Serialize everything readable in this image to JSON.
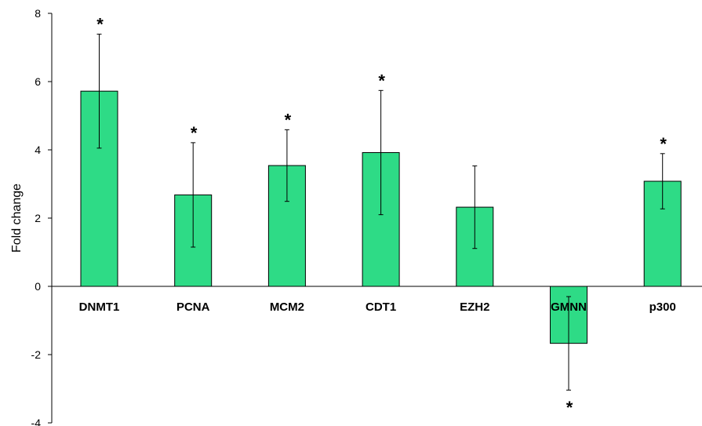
{
  "chart_data": {
    "type": "bar",
    "title": "",
    "xlabel": "",
    "ylabel": "Fold change",
    "ylim": [
      -4,
      8
    ],
    "yticks": [
      -4,
      -2,
      0,
      2,
      4,
      6,
      8
    ],
    "grid": false,
    "legend": "none",
    "bar_color": "#2edb86",
    "categories": [
      "DNMT1",
      "PCNA",
      "MCM2",
      "CDT1",
      "EZH2",
      "GMNN",
      "p300"
    ],
    "series": [
      {
        "values": [
          5.72,
          2.68,
          3.54,
          3.92,
          2.32,
          -1.67,
          3.08
        ],
        "error": [
          1.67,
          1.53,
          1.05,
          1.82,
          1.21,
          1.37,
          0.81
        ],
        "significant": [
          true,
          true,
          true,
          true,
          false,
          true,
          true
        ]
      }
    ],
    "significance_marker": "*"
  }
}
